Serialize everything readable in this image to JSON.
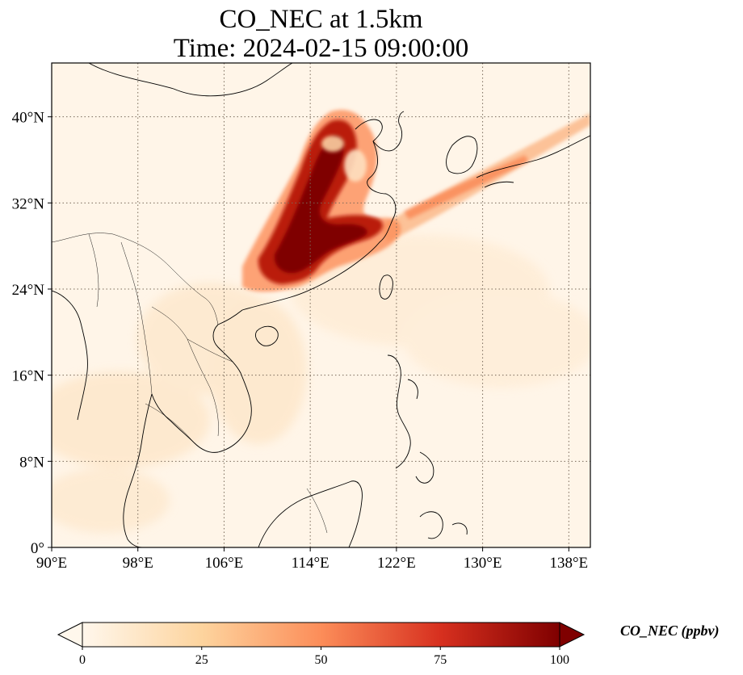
{
  "map": {
    "title_line1": "CO_NEC at 1.5km",
    "title_line2": "Time: 2024-02-15 09:00:00",
    "projection": "PlateCarree",
    "extent": {
      "lon_min": 90,
      "lon_max": 140,
      "lat_min": 0,
      "lat_max": 45
    },
    "gridlines": "dotted",
    "lon_ticks": [
      {
        "value": 90,
        "label": "90°E"
      },
      {
        "value": 98,
        "label": "98°E"
      },
      {
        "value": 106,
        "label": "106°E"
      },
      {
        "value": 114,
        "label": "114°E"
      },
      {
        "value": 122,
        "label": "122°E"
      },
      {
        "value": 130,
        "label": "130°E"
      },
      {
        "value": 138,
        "label": "138°E"
      }
    ],
    "lat_ticks": [
      {
        "value": 0,
        "label": "0°"
      },
      {
        "value": 8,
        "label": "8°N"
      },
      {
        "value": 16,
        "label": "16°N"
      },
      {
        "value": 24,
        "label": "24°N"
      },
      {
        "value": 32,
        "label": "32°N"
      },
      {
        "value": 40,
        "label": "40°N"
      }
    ]
  },
  "colorbar": {
    "label": "CO_NEC (ppbv)",
    "colormap": "OrRd",
    "colors": [
      "#fff7ec",
      "#fdd49e",
      "#fc8d59",
      "#d7301f",
      "#7f0000"
    ],
    "min": 0,
    "max": 100,
    "extend": "both",
    "ticks": [
      {
        "value": 0,
        "label": "0"
      },
      {
        "value": 25,
        "label": "25"
      },
      {
        "value": 50,
        "label": "50"
      },
      {
        "value": 75,
        "label": "75"
      },
      {
        "value": 100,
        "label": "100"
      }
    ]
  }
}
